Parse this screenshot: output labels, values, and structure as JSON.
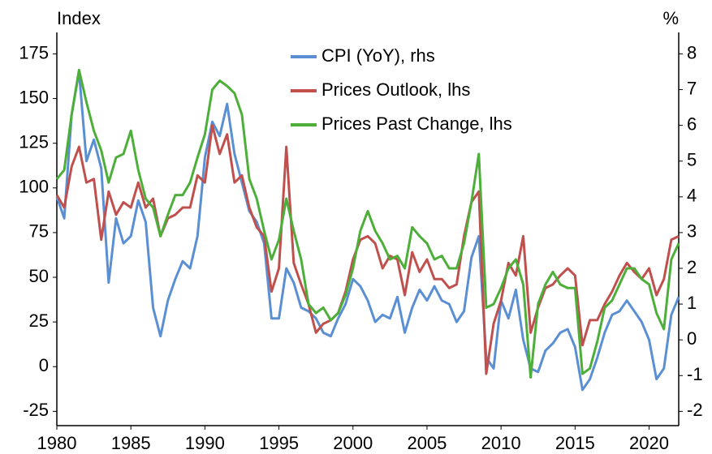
{
  "chart_data": {
    "type": "line",
    "y_label": "Index",
    "y2_label": "%",
    "x": [
      1980,
      1980.5,
      1981,
      1981.5,
      1982,
      1982.5,
      1983,
      1983.5,
      1984,
      1984.5,
      1985,
      1985.5,
      1986,
      1986.5,
      1987,
      1987.5,
      1988,
      1988.5,
      1989,
      1989.5,
      1990,
      1990.5,
      1991,
      1991.5,
      1992,
      1992.5,
      1993,
      1993.5,
      1994,
      1994.5,
      1995,
      1995.5,
      1996,
      1996.5,
      1997,
      1997.5,
      1998,
      1998.5,
      1999,
      1999.5,
      2000,
      2000.5,
      2001,
      2001.5,
      2002,
      2002.5,
      2003,
      2003.5,
      2004,
      2004.5,
      2005,
      2005.5,
      2006,
      2006.5,
      2007,
      2007.5,
      2008,
      2008.5,
      2009,
      2009.5,
      2010,
      2010.5,
      2011,
      2011.5,
      2012,
      2012.5,
      2013,
      2013.5,
      2014,
      2014.5,
      2015,
      2015.5,
      2016,
      2016.5,
      2017,
      2017.5,
      2018,
      2018.5,
      2019,
      2019.5,
      2020,
      2020.5,
      2021,
      2021.5,
      2022
    ],
    "series": [
      {
        "name": "CPI (YoY), rhs",
        "color": "#5b8fd4",
        "axis": "y2",
        "values": [
          4.0,
          3.4,
          6.3,
          7.5,
          5.0,
          5.6,
          4.8,
          1.6,
          3.4,
          2.7,
          2.9,
          3.9,
          3.3,
          0.9,
          0.1,
          1.1,
          1.7,
          2.2,
          2.0,
          2.9,
          5.1,
          6.1,
          5.7,
          6.6,
          5.2,
          4.4,
          3.6,
          3.3,
          2.7,
          0.6,
          0.6,
          2.0,
          1.6,
          0.9,
          0.8,
          0.6,
          0.2,
          0.1,
          0.6,
          1.0,
          1.7,
          1.5,
          1.1,
          0.5,
          0.7,
          0.6,
          1.2,
          0.2,
          0.9,
          1.4,
          1.1,
          1.5,
          1.1,
          1.0,
          0.5,
          0.8,
          2.3,
          2.9,
          -0.5,
          -0.8,
          1.1,
          0.6,
          1.4,
          0,
          -0.8,
          -0.9,
          -0.3,
          -0.1,
          0.2,
          0.3,
          -0.2,
          -1.4,
          -1.1,
          -0.5,
          0.2,
          0.7,
          0.8,
          1.1,
          0.8,
          0.5,
          0,
          -1.1,
          -0.8,
          0.7,
          1.2
        ]
      },
      {
        "name": "Prices Outlook, lhs",
        "color": "#c0504d",
        "values": [
          96,
          89,
          112,
          123,
          103,
          105,
          71,
          98,
          85,
          92,
          89,
          103,
          89,
          94,
          73,
          83,
          85,
          89,
          89,
          107,
          103,
          135,
          119,
          130,
          103,
          107,
          89,
          78,
          73,
          42,
          55,
          123,
          58,
          46,
          35,
          19,
          24,
          26,
          30,
          42,
          60,
          71,
          73,
          69,
          55,
          62,
          60,
          40,
          64,
          53,
          60,
          49,
          49,
          44,
          46,
          73,
          92,
          98,
          -4,
          24,
          37,
          58,
          51,
          73,
          19,
          33,
          44,
          46,
          51,
          55,
          51,
          12,
          26,
          26,
          35,
          42,
          51,
          58,
          53,
          49,
          55,
          40,
          49,
          71,
          73
        ]
      },
      {
        "name": "Prices Past Change, lhs",
        "color": "#4daf3a",
        "values": [
          105,
          110,
          141,
          166,
          148,
          132,
          121,
          103,
          117,
          119,
          132,
          110,
          94,
          89,
          73,
          85,
          96,
          96,
          103,
          117,
          130,
          155,
          160,
          157,
          153,
          141,
          105,
          94,
          76,
          60,
          71,
          94,
          76,
          60,
          35,
          30,
          33,
          26,
          30,
          40,
          55,
          76,
          87,
          76,
          69,
          60,
          62,
          55,
          78,
          73,
          69,
          60,
          62,
          55,
          55,
          69,
          92,
          119,
          33,
          35,
          44,
          55,
          60,
          46,
          -6,
          35,
          46,
          53,
          46,
          44,
          44,
          -4,
          -1,
          14,
          33,
          37,
          46,
          55,
          55,
          49,
          46,
          30,
          21,
          60,
          69
        ]
      }
    ],
    "xlim": [
      1980,
      2022
    ],
    "xticks": [
      1980,
      1985,
      1990,
      1995,
      2000,
      2005,
      2010,
      2015,
      2020
    ],
    "ylim": [
      -33,
      187
    ],
    "yticks": [
      -25,
      0,
      25,
      50,
      75,
      100,
      125,
      150,
      175
    ],
    "y2lim": [
      -2.4,
      8.6
    ],
    "y2ticks": [
      -2,
      -1,
      0,
      1,
      2,
      3,
      4,
      5,
      6,
      7,
      8
    ],
    "legend": "top"
  }
}
